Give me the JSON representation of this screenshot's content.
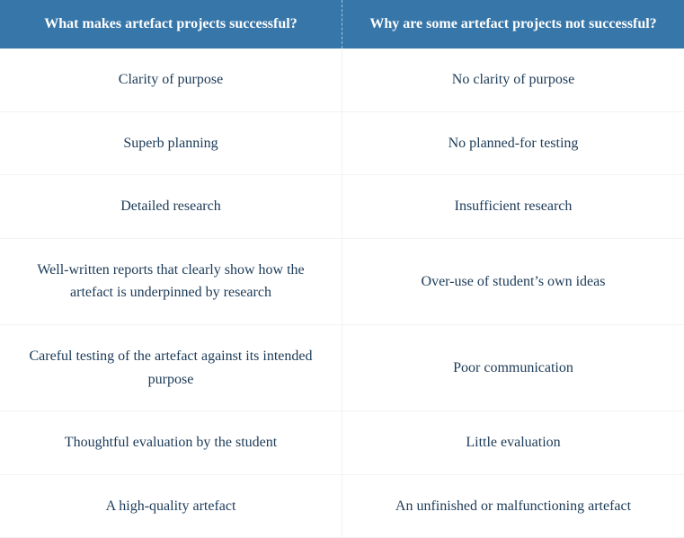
{
  "table": {
    "header_bg": "#3776a9",
    "header_text_color": "#ffffff",
    "body_text_color": "#1b3a57",
    "row_border_color": "#f2f2f2",
    "header_divider_color": "#a8c5db",
    "columns": [
      "What makes artefact projects successful?",
      "Why are some artefact projects not successful?"
    ],
    "rows": [
      [
        "Clarity of purpose",
        "No clarity of purpose"
      ],
      [
        "Superb planning",
        "No planned-for testing"
      ],
      [
        "Detailed research",
        "Insufficient research"
      ],
      [
        "Well-written reports that clearly show how the artefact is underpinned by research",
        "Over-use of student’s own ideas"
      ],
      [
        "Careful testing of the artefact against its intended purpose",
        "Poor communication"
      ],
      [
        "Thoughtful evaluation by the student",
        "Little evaluation"
      ],
      [
        "A high-quality artefact",
        "An unfinished or malfunctioning artefact"
      ]
    ]
  }
}
